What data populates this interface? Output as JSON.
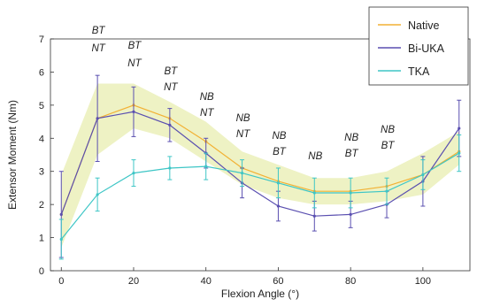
{
  "chart_data": {
    "type": "line",
    "xlabel": "Flexion Angle (°)",
    "ylabel": "Extensor Moment (Nm)",
    "xlim": [
      -3,
      113
    ],
    "ylim": [
      0,
      7
    ],
    "x_ticks": [
      0,
      20,
      40,
      60,
      80,
      100
    ],
    "y_ticks": [
      0,
      1,
      2,
      3,
      4,
      5,
      6,
      7
    ],
    "grid": false,
    "legend_position": "top-right",
    "x": [
      0,
      10,
      20,
      30,
      40,
      50,
      60,
      70,
      80,
      90,
      100,
      110
    ],
    "series": [
      {
        "name": "Native",
        "color": "#f2b134",
        "values": [
          1.7,
          4.6,
          5.0,
          4.6,
          3.9,
          3.1,
          2.7,
          2.4,
          2.4,
          2.55,
          2.9,
          3.6
        ],
        "band_lower": [
          0.7,
          3.5,
          4.3,
          4.0,
          3.3,
          2.6,
          2.2,
          2.0,
          2.0,
          2.1,
          2.3,
          3.2
        ],
        "band_upper": [
          2.9,
          5.65,
          5.65,
          5.1,
          4.5,
          3.6,
          3.2,
          2.8,
          2.8,
          3.0,
          3.55,
          4.2
        ]
      },
      {
        "name": "Bi-UKA",
        "color": "#5a4fb0",
        "values": [
          1.7,
          4.6,
          4.8,
          4.4,
          3.55,
          2.65,
          1.95,
          1.65,
          1.7,
          2.0,
          2.7,
          4.3
        ],
        "err": [
          1.3,
          1.3,
          0.75,
          0.5,
          0.45,
          0.45,
          0.45,
          0.45,
          0.4,
          0.4,
          0.75,
          0.85
        ]
      },
      {
        "name": "TKA",
        "color": "#3ec6c6",
        "values": [
          0.95,
          2.3,
          2.95,
          3.1,
          3.15,
          2.95,
          2.65,
          2.35,
          2.35,
          2.4,
          2.9,
          3.55
        ],
        "err": [
          0.6,
          0.5,
          0.4,
          0.35,
          0.4,
          0.4,
          0.45,
          0.45,
          0.45,
          0.4,
          0.45,
          0.55
        ]
      }
    ],
    "annotations": [
      {
        "x": 10,
        "lines": [
          "BT",
          "NT"
        ]
      },
      {
        "x": 20,
        "lines": [
          "BT",
          "NT"
        ]
      },
      {
        "x": 30,
        "lines": [
          "BT",
          "NT"
        ]
      },
      {
        "x": 40,
        "lines": [
          "NB",
          "NT"
        ]
      },
      {
        "x": 50,
        "lines": [
          "NB",
          "NT"
        ]
      },
      {
        "x": 60,
        "lines": [
          "NB",
          "BT"
        ]
      },
      {
        "x": 70,
        "lines": [
          "NB"
        ]
      },
      {
        "x": 80,
        "lines": [
          "NB",
          "BT"
        ]
      },
      {
        "x": 90,
        "lines": [
          "NB",
          "BT"
        ]
      }
    ]
  }
}
